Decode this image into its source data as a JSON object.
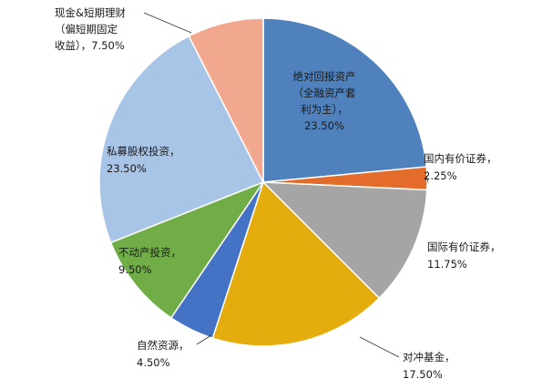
{
  "chart_data": {
    "type": "pie",
    "start_angle_deg": 0,
    "direction": "clockwise",
    "slices": [
      {
        "label_lines": [
          "绝对回报资产",
          "（全融资产套",
          "利为主），",
          "23.50%"
        ],
        "value": 23.5,
        "color": "#4f81bd"
      },
      {
        "label_lines": [
          "国内有价证券，",
          "2.25%"
        ],
        "value": 2.25,
        "color": "#e46c2a"
      },
      {
        "label_lines": [
          "国际有价证券，",
          "11.75%"
        ],
        "value": 11.75,
        "color": "#a5a5a5"
      },
      {
        "label_lines": [
          "对冲基金，",
          "17.50%"
        ],
        "value": 17.5,
        "color": "#e4ac0c"
      },
      {
        "label_lines": [
          "自然资源，",
          "4.50%"
        ],
        "value": 4.5,
        "color": "#4472c4"
      },
      {
        "label_lines": [
          "不动产投资，",
          "9.50%"
        ],
        "value": 9.5,
        "color": "#70ad47"
      },
      {
        "label_lines": [
          "私募股权投资，",
          "23.50%"
        ],
        "value": 23.5,
        "color": "#a8c4e6"
      },
      {
        "label_lines": [
          "现金&短期理财",
          "（偏短期固定",
          "收益），7.50%"
        ],
        "value": 7.5,
        "color": "#f2a88e"
      }
    ]
  }
}
